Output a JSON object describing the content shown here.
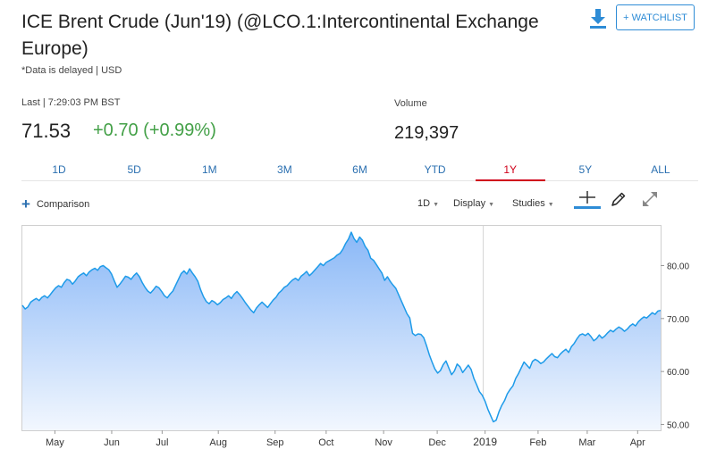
{
  "header": {
    "title": "ICE Brent Crude (Jun'19) (@LCO.1:Intercontinental Exchange Europe)",
    "delay_note": "*Data is delayed | USD",
    "watchlist_label": "+ WATCHLIST"
  },
  "quote": {
    "last_label": "Last | 7:29:03 PM BST",
    "price": "71.53",
    "change": "+0.70 (+0.99%)",
    "volume_label": "Volume",
    "volume": "219,397"
  },
  "ranges": [
    "1D",
    "5D",
    "1M",
    "3M",
    "6M",
    "YTD",
    "1Y",
    "5Y",
    "ALL"
  ],
  "active_range": "1Y",
  "toolbar": {
    "comparison": "Comparison",
    "interval": "1D",
    "display": "Display",
    "studies": "Studies"
  },
  "icons": {
    "download": "download-icon",
    "crosshair": "crosshair-icon",
    "pencil": "pencil-icon",
    "expand": "expand-icon"
  },
  "colors": {
    "line": "#1e9be9",
    "fill_top": "#8ab8f7",
    "fill_bottom": "#f2f7fe",
    "accent": "#2e8cd6",
    "positive": "#43a047",
    "active_tab": "#d0021b"
  },
  "chart_data": {
    "type": "area",
    "series": [
      {
        "values": [
          72.5,
          71.8,
          72.2,
          73.1,
          73.5,
          73.8,
          73.4,
          74.0,
          74.3,
          73.9,
          74.5,
          75.2,
          75.8,
          76.2,
          75.9,
          76.8,
          77.4,
          77.2,
          76.5,
          77.1,
          77.9,
          78.3,
          78.6,
          78.1,
          78.8,
          79.2,
          79.5,
          79.1,
          79.8,
          80.0,
          79.6,
          79.2,
          78.4,
          77.1,
          75.9,
          76.5,
          77.2,
          78.0,
          77.8,
          77.4,
          78.1,
          78.6,
          77.9,
          76.8,
          75.9,
          75.2,
          74.8,
          75.4,
          76.1,
          75.8,
          75.1,
          74.3,
          73.9,
          74.6,
          75.2,
          76.3,
          77.4,
          78.5,
          79.0,
          78.4,
          79.4,
          78.6,
          77.9,
          77.0,
          75.4,
          74.1,
          73.2,
          72.8,
          73.4,
          73.1,
          72.6,
          73.0,
          73.6,
          73.9,
          74.3,
          73.8,
          74.6,
          75.1,
          74.5,
          73.8,
          73.0,
          72.3,
          71.6,
          71.1,
          72.0,
          72.6,
          73.1,
          72.6,
          72.1,
          72.8,
          73.5,
          74.0,
          74.8,
          75.3,
          75.9,
          76.2,
          76.8,
          77.3,
          77.6,
          77.2,
          78.0,
          78.4,
          78.9,
          78.1,
          78.6,
          79.2,
          79.8,
          80.4,
          80.0,
          80.6,
          80.9,
          81.2,
          81.5,
          82.0,
          82.3,
          83.1,
          84.2,
          85.0,
          86.3,
          85.1,
          84.4,
          85.4,
          84.8,
          83.6,
          82.9,
          81.4,
          81.0,
          80.2,
          79.4,
          78.6,
          77.2,
          77.9,
          77.0,
          76.3,
          75.7,
          74.5,
          73.3,
          72.1,
          70.9,
          70.1,
          67.2,
          66.8,
          67.1,
          67.0,
          66.4,
          64.9,
          63.2,
          61.8,
          60.5,
          59.7,
          60.2,
          61.3,
          62.0,
          60.7,
          59.4,
          60.1,
          61.4,
          60.9,
          59.8,
          60.5,
          61.2,
          60.4,
          58.7,
          57.5,
          56.2,
          55.5,
          54.4,
          52.9,
          51.7,
          50.5,
          50.8,
          52.4,
          53.6,
          54.5,
          55.8,
          56.6,
          57.3,
          58.7,
          59.6,
          60.7,
          61.8,
          61.2,
          60.6,
          61.9,
          62.3,
          62.0,
          61.5,
          61.8,
          62.4,
          62.9,
          63.4,
          62.8,
          62.6,
          63.3,
          63.8,
          64.2,
          63.6,
          64.7,
          65.3,
          66.2,
          66.9,
          67.1,
          66.8,
          67.2,
          66.6,
          65.8,
          66.2,
          66.9,
          66.3,
          66.7,
          67.3,
          67.8,
          67.5,
          68.0,
          68.4,
          68.1,
          67.6,
          68.0,
          68.6,
          69.0,
          68.6,
          69.4,
          69.9,
          70.3,
          70.1,
          70.6,
          71.1,
          70.8,
          71.4,
          71.53
        ]
      }
    ],
    "ylim": [
      48.9,
      87.5
    ],
    "y_ticks": [
      50,
      60,
      70,
      80
    ],
    "y_tick_labels": [
      "50.00",
      "60.00",
      "70.00",
      "80.00"
    ],
    "x_tick_labels": [
      "May",
      "Jun",
      "Jul",
      "Aug",
      "Sep",
      "Oct",
      "Nov",
      "Dec",
      "2019",
      "Feb",
      "Mar",
      "Apr"
    ],
    "x_tick_positions": [
      0.051,
      0.14,
      0.219,
      0.307,
      0.396,
      0.476,
      0.566,
      0.65,
      0.725,
      0.808,
      0.885,
      0.964
    ],
    "grid": false
  }
}
